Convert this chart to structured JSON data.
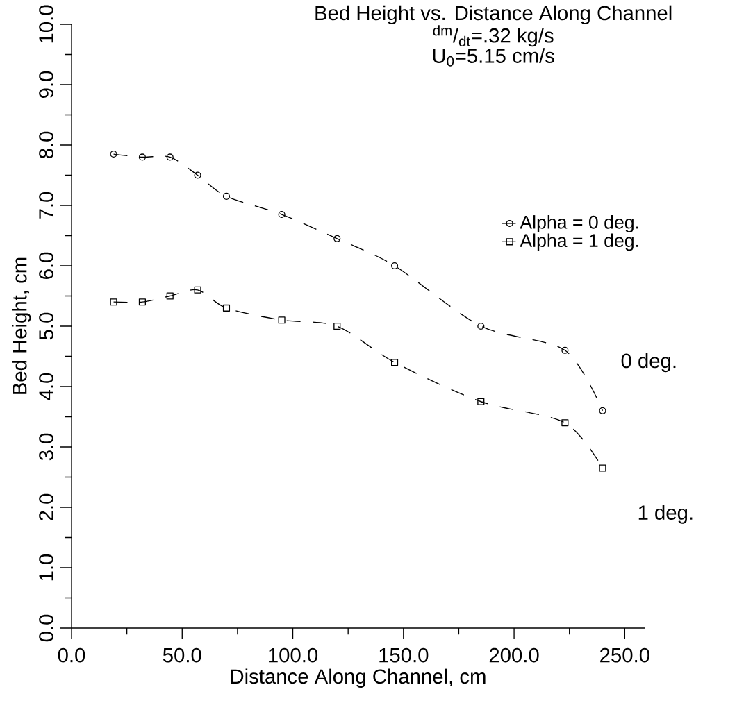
{
  "chart_data": {
    "type": "line",
    "title": "Bed Height vs. Distance Along Channel",
    "subtitle": "$^{dm}$/$_{dt}$=.32 kg/s",
    "annotations": [
      "U$_{0}$=5.15 cm/s",
      "0 deg.",
      "1 deg."
    ],
    "xlabel": "Distance Along Channel, cm",
    "ylabel": "Bed Height, cm",
    "xlim": [
      0,
      259
    ],
    "ylim": [
      0,
      10
    ],
    "xticks": [
      {
        "value": 0,
        "label": "0.0"
      },
      {
        "value": 50,
        "label": "50.0"
      },
      {
        "value": 100,
        "label": "100.0"
      },
      {
        "value": 150,
        "label": "150.0"
      },
      {
        "value": 200,
        "label": "200.0"
      },
      {
        "value": 250,
        "label": "250.0"
      }
    ],
    "yticks": [
      {
        "value": 0,
        "label": "0.0"
      },
      {
        "value": 1,
        "label": "1.0"
      },
      {
        "value": 2,
        "label": "2.0"
      },
      {
        "value": 3,
        "label": "3.0"
      },
      {
        "value": 4,
        "label": "4.0"
      },
      {
        "value": 5,
        "label": "5.0"
      },
      {
        "value": 6,
        "label": "6.0"
      },
      {
        "value": 7,
        "label": "7.0"
      },
      {
        "value": 8,
        "label": "8.0"
      },
      {
        "value": 9,
        "label": "9.0"
      },
      {
        "value": 10,
        "label": "10.0"
      }
    ],
    "x": [
      19,
      32,
      44.5,
      57,
      70,
      95,
      120,
      146,
      185,
      223,
      240
    ],
    "line_style": "dashed",
    "legend": "right",
    "series": [
      {
        "name": "Alpha = 0 deg.",
        "color": "#000000",
        "marker": "circle",
        "values": [
          7.85,
          7.8,
          7.8,
          7.5,
          7.15,
          6.85,
          6.45,
          6.0,
          5.0,
          4.6,
          3.6
        ]
      },
      {
        "name": "Alpha = 1 deg.",
        "color": "#000000",
        "marker": "square",
        "values": [
          5.4,
          5.4,
          5.5,
          5.6,
          5.3,
          5.1,
          5.0,
          4.4,
          3.75,
          3.4,
          2.65
        ]
      }
    ]
  }
}
